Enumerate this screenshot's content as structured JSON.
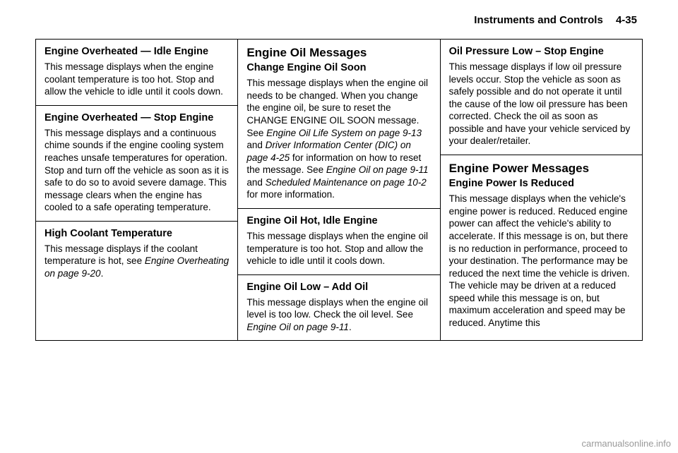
{
  "header": {
    "title": "Instruments and Controls",
    "page_number": "4-35"
  },
  "col1": {
    "blocks": [
      {
        "heading": "Engine Overheated — Idle Engine",
        "body_html": "This message displays when the engine coolant temperature is too hot. Stop and allow the vehicle to idle until it cools down."
      },
      {
        "heading": "Engine Overheated — Stop Engine",
        "body_html": "This message displays and a continuous chime sounds if the engine cooling system reaches unsafe temperatures for operation. Stop and turn off the vehicle as soon as it is safe to do so to avoid severe damage. This message clears when the engine has cooled to a safe operating temperature."
      },
      {
        "heading": "High Coolant Temperature",
        "body_html": "This message displays if the coolant temperature is hot, see <i>Engine Overheating on page 9-20</i>."
      }
    ]
  },
  "col2": {
    "blocks": [
      {
        "section": "Engine Oil Messages",
        "heading": "Change Engine Oil Soon",
        "body_html": "This message displays when the engine oil needs to be changed. When you change the engine oil, be sure to reset the CHANGE ENGINE OIL SOON message. See <i>Engine Oil Life System on page 9-13</i> and <i>Driver Information Center (DIC) on page 4-25</i> for information on how to reset the message. See <i>Engine Oil on page 9-11</i> and <i>Scheduled Maintenance on page 10-2</i> for more information."
      },
      {
        "heading": "Engine Oil Hot, Idle Engine",
        "body_html": "This message displays when the engine oil temperature is too hot. Stop and allow the vehicle to idle until it cools down."
      },
      {
        "heading": "Engine Oil Low – Add Oil",
        "body_html": "This message displays when the engine oil level is too low. Check the oil level. See <i>Engine Oil on page 9-11</i>."
      }
    ]
  },
  "col3": {
    "blocks": [
      {
        "heading": "Oil Pressure Low – Stop Engine",
        "body_html": "This message displays if low oil pressure levels occur. Stop the vehicle as soon as safely possible and do not operate it until the cause of the low oil pressure has been corrected. Check the oil as soon as possible and have your vehicle serviced by your dealer/retailer."
      },
      {
        "section": "Engine Power Messages",
        "heading": "Engine Power Is Reduced",
        "body_html": "This message displays when the vehicle's engine power is reduced. Reduced engine power can affect the vehicle's ability to accelerate. If this message is on, but there is no reduction in performance, proceed to your destination. The performance may be reduced the next time the vehicle is driven. The vehicle may be driven at a reduced speed while this message is on, but maximum acceleration and speed may be reduced. Anytime this"
      }
    ]
  },
  "watermark": "carmanualsonline.info"
}
